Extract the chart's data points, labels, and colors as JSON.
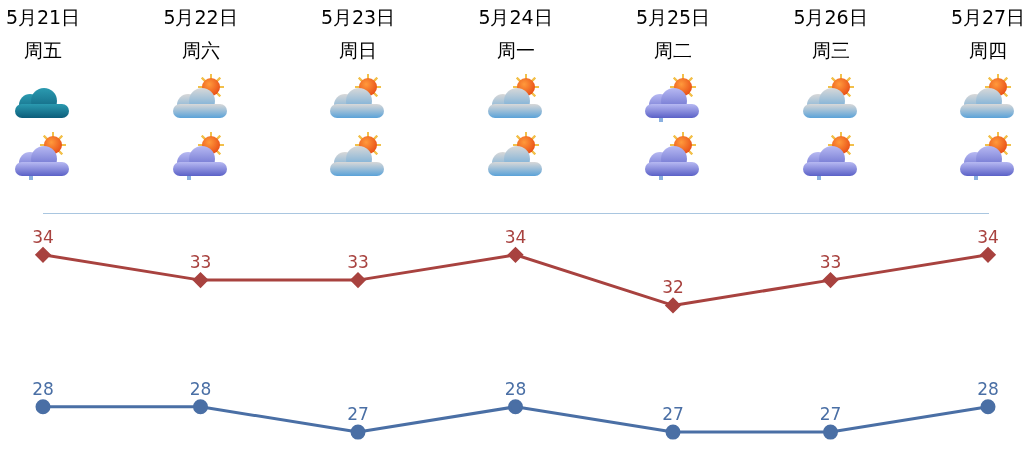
{
  "chart_data": {
    "type": "line",
    "categories": [
      "5月21日",
      "5月22日",
      "5月23日",
      "5月24日",
      "5月25日",
      "5月26日",
      "5月27日"
    ],
    "annotations": [
      "周五",
      "周六",
      "周日",
      "周一",
      "周二",
      "周三",
      "周四"
    ],
    "series": [
      {
        "color": "#a8423f",
        "marker": "diamond",
        "values": [
          34,
          33,
          33,
          34,
          32,
          33,
          34
        ]
      },
      {
        "color": "#4a6fa5",
        "marker": "circle",
        "values": [
          28,
          28,
          27,
          28,
          27,
          27,
          28
        ]
      }
    ],
    "data_labels": true,
    "grid": false,
    "legend": false,
    "tick_labels": "x"
  }
}
